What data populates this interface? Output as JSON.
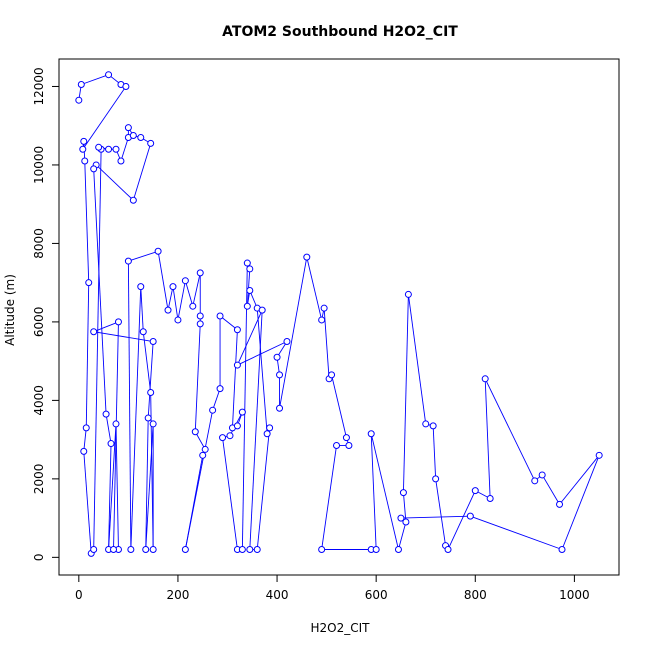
{
  "chart_data": {
    "type": "line",
    "title": "ATOM2 Southbound H2O2_CIT",
    "xlabel": "H2O2_CIT",
    "ylabel": "Altitude (m)",
    "xlim": [
      -40,
      1090
    ],
    "ylim": [
      -450,
      12700
    ],
    "xticks": [
      0,
      200,
      400,
      600,
      800,
      1000
    ],
    "yticks": [
      0,
      2000,
      4000,
      6000,
      8000,
      10000,
      12000
    ],
    "grid": false,
    "legend": "none",
    "series_color": "#0000ff",
    "marker": "open-circle",
    "series": [
      {
        "values": [
          [
            0,
            11650
          ],
          [
            5,
            12050
          ],
          [
            60,
            12300
          ],
          [
            85,
            12050
          ],
          [
            95,
            12000
          ],
          [
            8,
            10400
          ],
          [
            10,
            10600
          ],
          [
            12,
            10100
          ],
          [
            20,
            7000
          ],
          [
            15,
            3300
          ],
          [
            10,
            2700
          ],
          [
            25,
            100
          ],
          [
            30,
            200
          ],
          [
            45,
            10400
          ],
          [
            40,
            10450
          ],
          [
            60,
            10400
          ],
          [
            75,
            10400
          ],
          [
            85,
            10100
          ],
          [
            100,
            10700
          ],
          [
            100,
            10950
          ],
          [
            110,
            10750
          ],
          [
            125,
            10700
          ],
          [
            145,
            10550
          ],
          [
            110,
            9100
          ],
          [
            35,
            10000
          ],
          [
            30,
            9900
          ],
          [
            55,
            3650
          ],
          [
            65,
            2900
          ],
          [
            60,
            200
          ],
          [
            75,
            3400
          ],
          [
            80,
            200
          ],
          [
            70,
            200
          ],
          [
            80,
            6000
          ],
          [
            30,
            5750
          ],
          [
            150,
            5500
          ],
          [
            140,
            3550
          ],
          [
            135,
            200
          ],
          [
            150,
            3400
          ],
          [
            150,
            200
          ],
          [
            145,
            4200
          ],
          [
            130,
            5750
          ],
          [
            125,
            6900
          ],
          [
            105,
            200
          ],
          [
            100,
            7550
          ],
          [
            160,
            7800
          ],
          [
            180,
            6300
          ],
          [
            190,
            6900
          ],
          [
            200,
            6050
          ],
          [
            215,
            7050
          ],
          [
            230,
            6400
          ],
          [
            245,
            7250
          ],
          [
            245,
            6150
          ],
          [
            245,
            5950
          ],
          [
            235,
            3200
          ],
          [
            255,
            2750
          ],
          [
            250,
            2600
          ],
          [
            215,
            200
          ],
          [
            270,
            3750
          ],
          [
            285,
            4300
          ],
          [
            285,
            6150
          ],
          [
            320,
            5800
          ],
          [
            310,
            3300
          ],
          [
            320,
            3350
          ],
          [
            330,
            3700
          ],
          [
            305,
            3100
          ],
          [
            290,
            3050
          ],
          [
            320,
            200
          ],
          [
            330,
            200
          ],
          [
            340,
            7500
          ],
          [
            345,
            7350
          ],
          [
            340,
            6400
          ],
          [
            345,
            6800
          ],
          [
            360,
            6350
          ],
          [
            380,
            3150
          ],
          [
            385,
            3300
          ],
          [
            360,
            200
          ],
          [
            345,
            200
          ],
          [
            370,
            6300
          ],
          [
            320,
            4900
          ],
          [
            420,
            5500
          ],
          [
            400,
            5100
          ],
          [
            405,
            4650
          ],
          [
            405,
            3800
          ],
          [
            460,
            7650
          ],
          [
            490,
            6050
          ],
          [
            495,
            6350
          ],
          [
            505,
            4550
          ],
          [
            510,
            4650
          ],
          [
            540,
            3050
          ],
          [
            545,
            2850
          ],
          [
            520,
            2850
          ],
          [
            490,
            200
          ],
          [
            590,
            200
          ],
          [
            600,
            200
          ],
          [
            590,
            3150
          ],
          [
            645,
            200
          ],
          [
            660,
            900
          ],
          [
            655,
            1650
          ],
          [
            665,
            6700
          ],
          [
            700,
            3400
          ],
          [
            715,
            3350
          ],
          [
            720,
            2000
          ],
          [
            740,
            300
          ],
          [
            745,
            200
          ],
          [
            800,
            1700
          ],
          [
            830,
            1500
          ],
          [
            820,
            4550
          ],
          [
            920,
            1950
          ],
          [
            935,
            2100
          ],
          [
            970,
            1350
          ],
          [
            1050,
            2600
          ],
          [
            975,
            200
          ],
          [
            790,
            1050
          ],
          [
            650,
            1000
          ]
        ]
      }
    ]
  }
}
